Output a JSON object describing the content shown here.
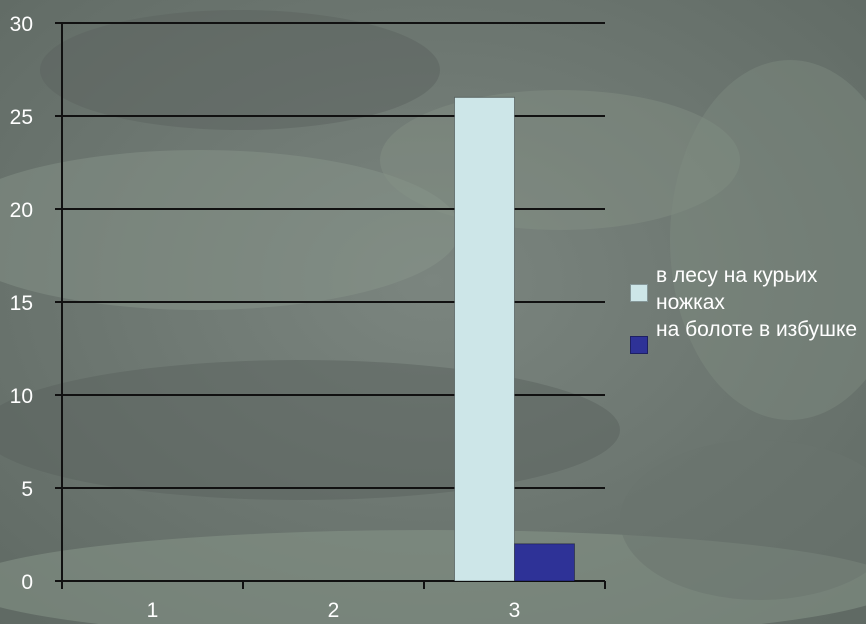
{
  "chart_data": {
    "type": "bar",
    "categories": [
      "1",
      "2",
      "3"
    ],
    "series": [
      {
        "name": "в лесу на курьих ножках",
        "color": "#cde6e8",
        "values": [
          0,
          0,
          26
        ]
      },
      {
        "name": "на болоте в избушке",
        "color": "#2e3297",
        "values": [
          0,
          0,
          2
        ]
      }
    ],
    "y_ticks": [
      "0",
      "5",
      "10",
      "15",
      "20",
      "25",
      "30"
    ],
    "ylim": [
      0,
      30
    ],
    "grid": true,
    "legend_position": "right",
    "background": "forest-photo-grey"
  },
  "legend": {
    "items": [
      {
        "label": "в лесу на курьих ножках",
        "color": "#cde6e8"
      },
      {
        "label": "на болоте в избушке",
        "color": "#2e3297"
      }
    ]
  }
}
